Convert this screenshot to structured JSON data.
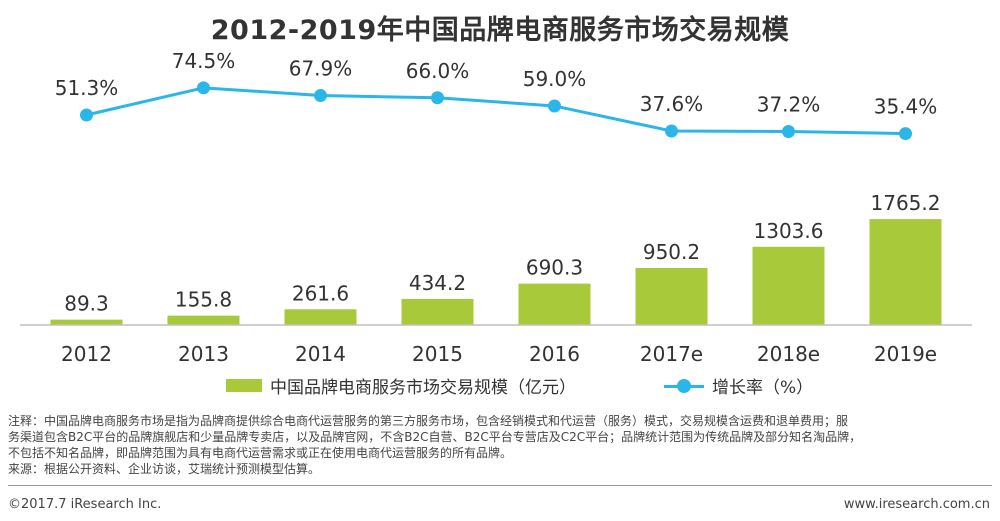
{
  "title": "2012-2019年中国品牌电商服务市场交易规模",
  "chart_data": {
    "type": "bar+line",
    "categories": [
      "2012",
      "2013",
      "2014",
      "2015",
      "2016",
      "2017e",
      "2018e",
      "2019e"
    ],
    "series": [
      {
        "name": "中国品牌电商服务市场交易规模（亿元）",
        "type": "bar",
        "color": "#a8c93a",
        "values": [
          89.3,
          155.8,
          261.6,
          434.2,
          690.3,
          950.2,
          1303.6,
          1765.2
        ],
        "labels": [
          "89.3",
          "155.8",
          "261.6",
          "434.2",
          "690.3",
          "950.2",
          "1303.6",
          "1765.2"
        ]
      },
      {
        "name": "增长率（%）",
        "type": "line",
        "color": "#2bb6ea",
        "values": [
          51.3,
          74.5,
          67.9,
          66.0,
          59.0,
          37.6,
          37.2,
          35.4
        ],
        "labels": [
          "51.3%",
          "74.5%",
          "67.9%",
          "66.0%",
          "59.0%",
          "37.6%",
          "37.2%",
          "35.4%"
        ]
      }
    ],
    "bar_ylim": [
      0,
      1900
    ],
    "line_ylim": [
      0,
      100
    ]
  },
  "legend": {
    "bar_label": "中国品牌电商服务市场交易规模（亿元）",
    "line_label": "增长率（%）"
  },
  "note": {
    "line1": "注释：中国品牌电商服务市场是指为品牌商提供综合电商代运营服务的第三方服务市场，包含经销模式和代运营（服务）模式，交易规模含运费和退单费用；服",
    "line2": "务渠道包含B2C平台的品牌旗舰店和少量品牌专卖店，以及品牌官网，不含B2C自营、B2C平台专营店及C2C平台；品牌统计范围为传统品牌及部分知名淘品牌，",
    "line3": "不包括不知名品牌，即品牌范围为具有电商代运营需求或正在使用电商代运营服务的所有品牌。",
    "source": "来源：根据公开资料、企业访谈，艾瑞统计预测模型估算。"
  },
  "footer": {
    "copyright": "©2017.7 iResearch Inc.",
    "website": "www.iresearch.com.cn"
  }
}
